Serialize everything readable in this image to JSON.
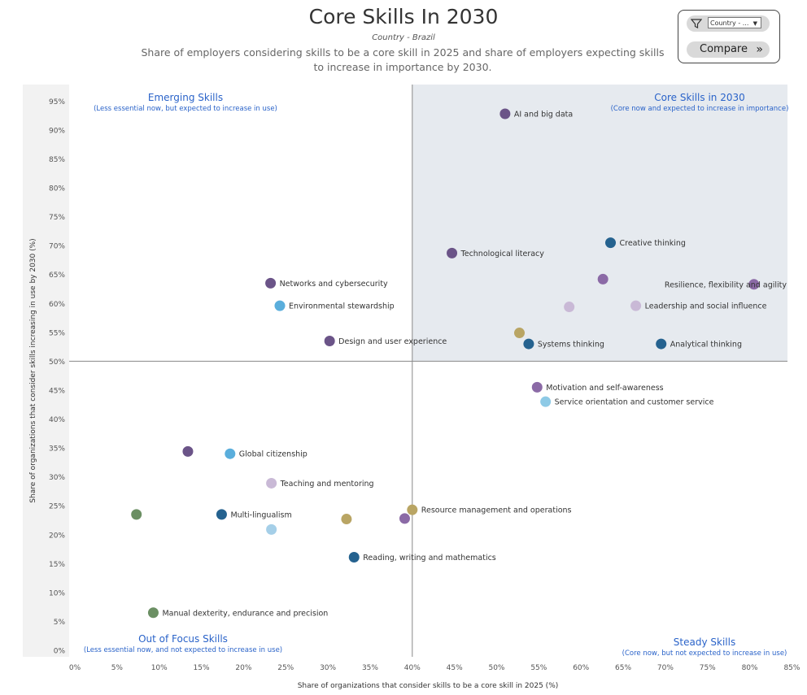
{
  "header": {
    "title": "Core Skills In 2030",
    "subtitle_country": "Country - Brazil",
    "description": "Share of employers considering skills to be a core skill in 2025 and share of employers expecting skills to increase in importance by 2030."
  },
  "controls": {
    "country_filter_value": "Country - ...",
    "compare_label": "Compare",
    "filter_icon": "filter-icon",
    "compare_icon": "double-chevron-right-icon"
  },
  "chart_data": {
    "type": "scatter",
    "xlabel": "Share of organizations that consider skills to be a core skill in 2025 (%)",
    "ylabel": "Share of organizations that consider skills increasing in use by 2030 (%)",
    "xlim": [
      0,
      85
    ],
    "ylim": [
      0,
      97
    ],
    "x_ticks": [
      "0%",
      "5%",
      "10%",
      "15%",
      "20%",
      "25%",
      "30%",
      "35%",
      "40%",
      "45%",
      "50%",
      "55%",
      "60%",
      "65%",
      "70%",
      "75%",
      "80%",
      "85%"
    ],
    "y_ticks": [
      "0%",
      "5%",
      "10%",
      "15%",
      "20%",
      "25%",
      "30%",
      "35%",
      "40%",
      "45%",
      "50%",
      "55%",
      "60%",
      "65%",
      "70%",
      "75%",
      "80%",
      "85%",
      "90%",
      "95%"
    ],
    "divider": {
      "x": 40,
      "y": 50
    },
    "quadrants": {
      "top_left": {
        "title": "Emerging Skills",
        "subtitle": "(Less essential now, but expected to increase in use)"
      },
      "top_right": {
        "title": "Core Skills in 2030",
        "subtitle": "(Core now and expected to increase in importance)"
      },
      "bottom_left": {
        "title": "Out of Focus Skills",
        "subtitle": "(Less essential now, and not expected to increase in use)"
      },
      "bottom_right": {
        "title": "Steady Skills",
        "subtitle": "(Core now, but not expected to increase in use)"
      }
    },
    "colors": {
      "top_right_bg": "#e6eaef",
      "left_strip_bg": "#f2f2f2"
    },
    "points": [
      {
        "label": "AI and big data",
        "x": 51,
        "y": 92.8,
        "color": "#6b5488"
      },
      {
        "label": "Creative thinking",
        "x": 63.5,
        "y": 70.5,
        "color": "#25628f"
      },
      {
        "label": "Technological literacy",
        "x": 44.7,
        "y": 68.7,
        "color": "#6b5488"
      },
      {
        "label": "",
        "x": 62.6,
        "y": 64.2,
        "color": "#8b6aa6"
      },
      {
        "label": "Resilience, flexibility and agility",
        "x": 80.5,
        "y": 63.3,
        "color": "#8b6aa6"
      },
      {
        "label": "Networks and cybersecurity",
        "x": 23.2,
        "y": 63.5,
        "color": "#6b5488"
      },
      {
        "label": "Environmental stewardship",
        "x": 24.3,
        "y": 59.6,
        "color": "#5aaedc"
      },
      {
        "label": "",
        "x": 58.6,
        "y": 59.4,
        "color": "#c9b9d6"
      },
      {
        "label": "Leadership and social influence",
        "x": 66.5,
        "y": 59.6,
        "color": "#c9b9d6"
      },
      {
        "label": "",
        "x": 52.7,
        "y": 54.9,
        "color": "#b9a564"
      },
      {
        "label": "Systems thinking",
        "x": 53.8,
        "y": 53.0,
        "color": "#25628f"
      },
      {
        "label": "Analytical thinking",
        "x": 69.5,
        "y": 53.0,
        "color": "#25628f"
      },
      {
        "label": "Design and user experience",
        "x": 30.2,
        "y": 53.5,
        "color": "#6b5488"
      },
      {
        "label": "Motivation and self-awareness",
        "x": 54.8,
        "y": 45.5,
        "color": "#8b6aa6"
      },
      {
        "label": "Service orientation and customer service",
        "x": 55.8,
        "y": 43.0,
        "color": "#8ecae6"
      },
      {
        "label": "",
        "x": 13.4,
        "y": 34.4,
        "color": "#6b5488"
      },
      {
        "label": "Global citizenship",
        "x": 18.4,
        "y": 34.0,
        "color": "#5aaedc"
      },
      {
        "label": "Teaching and mentoring",
        "x": 23.3,
        "y": 28.9,
        "color": "#c9b9d6"
      },
      {
        "label": "",
        "x": 7.3,
        "y": 23.5,
        "color": "#6b8f63"
      },
      {
        "label": "Multi-lingualism",
        "x": 17.4,
        "y": 23.5,
        "color": "#25628f"
      },
      {
        "label": "",
        "x": 23.3,
        "y": 20.9,
        "color": "#a5cfe8"
      },
      {
        "label": "",
        "x": 32.2,
        "y": 22.7,
        "color": "#b9a564"
      },
      {
        "label": "Resource management and operations",
        "x": 40.0,
        "y": 24.3,
        "color": "#b9a564"
      },
      {
        "label": "",
        "x": 39.1,
        "y": 22.8,
        "color": "#8b6aa6"
      },
      {
        "label": "Reading, writing and mathematics",
        "x": 33.1,
        "y": 16.1,
        "color": "#25628f"
      },
      {
        "label": "Manual dexterity, endurance and precision",
        "x": 9.3,
        "y": 6.5,
        "color": "#6b8f63"
      }
    ]
  }
}
